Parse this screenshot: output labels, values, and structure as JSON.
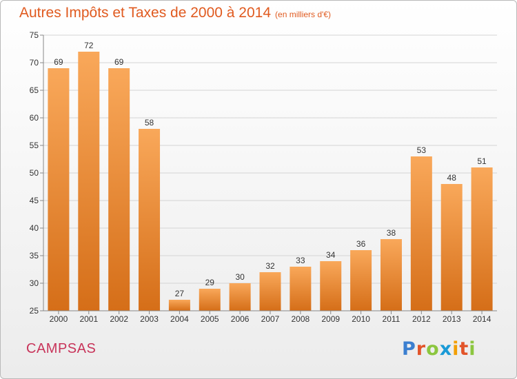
{
  "header": {
    "title": "Autres Impôts et Taxes de 2000 à 2014",
    "unit": "(en milliers d'€)"
  },
  "footer": {
    "commune": "CAMPSAS",
    "logo": "Proxiti"
  },
  "logo_colors": [
    "#3b7fd0",
    "#e2542a",
    "#8cc63f",
    "#1a9ad6",
    "#f29f05",
    "#e2542a",
    "#8cc63f"
  ],
  "colors": {
    "bar_light": "#f9a85a",
    "bar_dark": "#d56e18",
    "title": "#e05a1f",
    "commune": "#c8345a"
  },
  "chart_data": {
    "type": "bar",
    "title": "Autres Impôts et Taxes de 2000 à 2014",
    "ylabel": "",
    "xlabel": "",
    "categories": [
      "2000",
      "2001",
      "2002",
      "2003",
      "2004",
      "2005",
      "2006",
      "2007",
      "2008",
      "2009",
      "2010",
      "2011",
      "2012",
      "2013",
      "2014"
    ],
    "values": [
      69,
      72,
      69,
      58,
      27,
      29,
      30,
      32,
      33,
      34,
      36,
      38,
      53,
      48,
      51
    ],
    "ylim": [
      25,
      75
    ],
    "yticks": [
      25,
      30,
      35,
      40,
      45,
      50,
      55,
      60,
      65,
      70,
      75
    ],
    "grid": true,
    "legend": "none"
  }
}
